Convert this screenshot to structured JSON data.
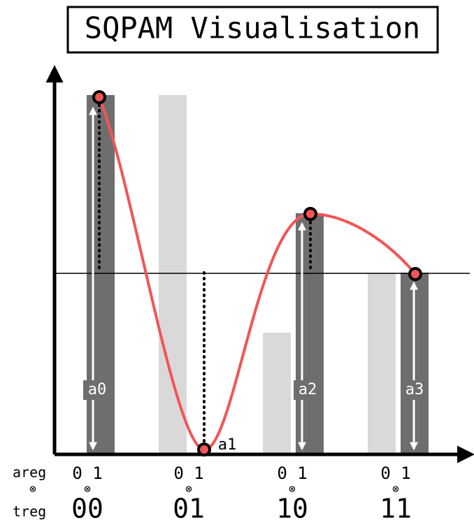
{
  "title": "SQPAM Visualisation",
  "areg_label": "areg",
  "treg_label": "treg",
  "tensor_symbol": "⊗",
  "amplitude_labels": [
    "a0",
    "a1",
    "a2",
    "a3"
  ],
  "groups": [
    {
      "bits": "0 1",
      "code": "00"
    },
    {
      "bits": "0 1",
      "code": "01"
    },
    {
      "bits": "0 1",
      "code": "10"
    },
    {
      "bits": "0 1",
      "code": "11"
    }
  ]
}
